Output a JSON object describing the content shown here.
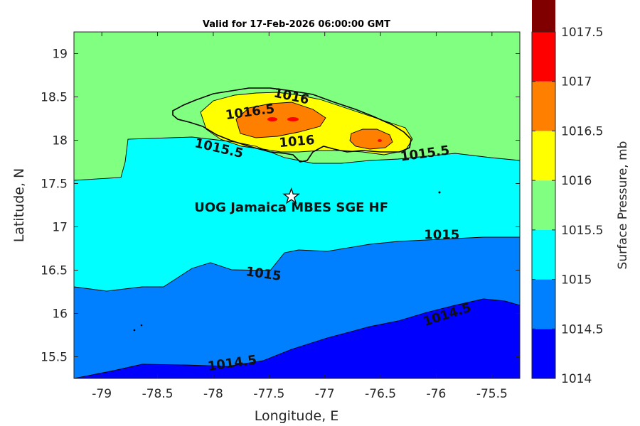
{
  "title": "Valid for 17-Feb-2026 06:00:00 GMT",
  "axes": {
    "xlabel": "Longitude, E",
    "ylabel": "Latitude, N",
    "xlim": [
      -79.25,
      -75.25
    ],
    "ylim": [
      15.25,
      19.25
    ],
    "xticks": [
      "-79",
      "-78.5",
      "-78",
      "-77.5",
      "-77",
      "-76.5",
      "-76",
      "-75.5"
    ],
    "yticks": [
      "15.5",
      "16",
      "16.5",
      "17",
      "17.5",
      "18",
      "18.5",
      "19"
    ]
  },
  "station": {
    "label": "UOG Jamaica MBES SGE HF",
    "lon": -77.3,
    "lat": 17.35
  },
  "contour_labels": [
    {
      "text": "1016",
      "lon": -77.3,
      "lat": 18.5,
      "angle": 12
    },
    {
      "text": "1016.5",
      "lon": -77.67,
      "lat": 18.32,
      "angle": -8
    },
    {
      "text": "1016",
      "lon": -77.25,
      "lat": 17.98,
      "angle": -5
    },
    {
      "text": "1015.5",
      "lon": -77.95,
      "lat": 17.9,
      "angle": 13
    },
    {
      "text": "1015.5",
      "lon": -76.1,
      "lat": 17.84,
      "angle": -8
    },
    {
      "text": "1015",
      "lon": -75.95,
      "lat": 16.9,
      "angle": 0
    },
    {
      "text": "1015",
      "lon": -77.55,
      "lat": 16.45,
      "angle": 8
    },
    {
      "text": "1014.5",
      "lon": -75.9,
      "lat": 15.98,
      "angle": -18
    },
    {
      "text": "1014.5",
      "lon": -77.83,
      "lat": 15.42,
      "angle": -8
    }
  ],
  "colorbar": {
    "label": "Surface Pressure, mb",
    "ticks": [
      "1017.5",
      "1017",
      "1016.5",
      "1016",
      "1015.5",
      "1015",
      "1014.5",
      "1014"
    ],
    "levels": [
      1014,
      1014.5,
      1015,
      1015.5,
      1016,
      1016.5,
      1017,
      1017.5
    ],
    "colors": [
      "#0000ff",
      "#0080ff",
      "#00ffff",
      "#80ff80",
      "#ffff00",
      "#ff8000",
      "#ff0000",
      "#800000"
    ]
  },
  "chart_data": {
    "type": "filled-contour-map",
    "title": "Valid for 17-Feb-2026 06:00:00 GMT",
    "variable": "Surface Pressure",
    "units": "mb",
    "xlabel": "Longitude, E",
    "ylabel": "Latitude, N",
    "xlim": [
      -79.25,
      -75.25
    ],
    "ylim": [
      15.25,
      19.25
    ],
    "contour_levels": [
      1014,
      1014.5,
      1015,
      1015.5,
      1016,
      1016.5,
      1017,
      1017.5
    ],
    "regions": [
      {
        "level_band": "1014-1014.5",
        "location": "southeast corner"
      },
      {
        "level_band": "1014.5-1015",
        "location": "southern band"
      },
      {
        "level_band": "1015-1015.5",
        "location": "central band south of Jamaica"
      },
      {
        "level_band": "1015.5-1016",
        "location": "north, including outer Jamaica"
      },
      {
        "level_band": "1016-1016.5",
        "location": "over Jamaica interior"
      },
      {
        "level_band": "1016.5-1017",
        "location": "two small highs over western-central and eastern Jamaica"
      }
    ]
  }
}
